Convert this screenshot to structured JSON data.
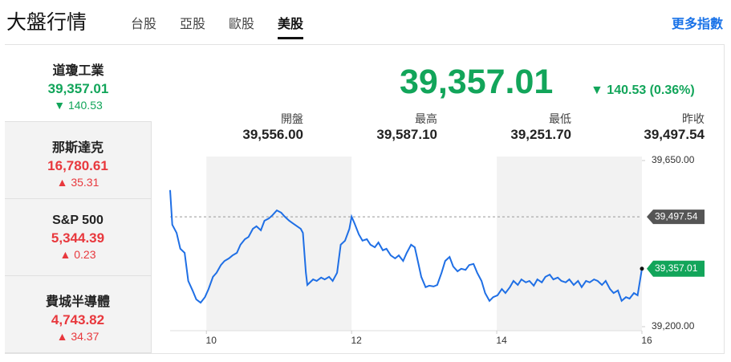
{
  "header": {
    "title": "大盤行情",
    "tabs": [
      "台股",
      "亞股",
      "歐股",
      "美股"
    ],
    "active_tab": 3,
    "link": "更多指數"
  },
  "indices": [
    {
      "name": "道瓊工業",
      "price": "39,357.01",
      "change": "140.53",
      "direction": "down"
    },
    {
      "name": "那斯達克",
      "price": "16,780.61",
      "change": "35.31",
      "direction": "up"
    },
    {
      "name": "S&P 500",
      "price": "5,344.39",
      "change": "0.23",
      "direction": "up"
    },
    {
      "name": "費城半導體",
      "price": "4,743.82",
      "change": "34.37",
      "direction": "up"
    }
  ],
  "active_index": 0,
  "quote": {
    "price": "39,357.01",
    "change": "140.53 (0.36%)",
    "direction": "down",
    "stats": [
      {
        "label": "開盤",
        "value": "39,556.00"
      },
      {
        "label": "最高",
        "value": "39,587.10"
      },
      {
        "label": "最低",
        "value": "39,251.70"
      },
      {
        "label": "昨收",
        "value": "39,497.54"
      }
    ]
  },
  "chart_data": {
    "type": "line",
    "color": "#1f6fe5",
    "x": [
      9.5,
      9.53,
      9.59,
      9.64,
      9.7,
      9.75,
      9.81,
      9.86,
      9.92,
      9.98,
      10.03,
      10.09,
      10.14,
      10.2,
      10.25,
      10.31,
      10.36,
      10.42,
      10.47,
      10.53,
      10.58,
      10.64,
      10.69,
      10.75,
      10.8,
      10.86,
      10.91,
      10.97,
      11.03,
      11.08,
      11.14,
      11.19,
      11.25,
      11.3,
      11.33,
      11.37,
      11.39,
      11.47,
      11.52,
      11.58,
      11.63,
      11.69,
      11.74,
      11.8,
      11.85,
      11.91,
      11.97,
      12.0,
      12.04,
      12.1,
      12.15,
      12.21,
      12.26,
      12.32,
      12.37,
      12.43,
      12.48,
      12.54,
      12.6,
      12.65,
      12.71,
      12.76,
      12.82,
      12.87,
      12.9,
      12.96,
      13.02,
      13.07,
      13.13,
      13.18,
      13.24,
      13.29,
      13.35,
      13.4,
      13.46,
      13.51,
      13.57,
      13.62,
      13.68,
      13.73,
      13.79,
      13.84,
      13.9,
      13.95,
      14.01,
      14.07,
      14.12,
      14.18,
      14.23,
      14.29,
      14.34,
      14.4,
      14.45,
      14.51,
      14.56,
      14.62,
      14.67,
      14.73,
      14.78,
      14.84,
      14.89,
      14.95,
      15.0,
      15.06,
      15.12,
      15.17,
      15.23,
      15.28,
      15.34,
      15.39,
      15.45,
      15.5,
      15.56,
      15.61,
      15.67,
      15.72,
      15.78,
      15.83,
      15.89,
      15.94,
      16.0
    ],
    "values": [
      39570,
      39476,
      39454,
      39411,
      39400,
      39324,
      39298,
      39274,
      39265,
      39280,
      39302,
      39335,
      39346,
      39367,
      39378,
      39385,
      39393,
      39400,
      39422,
      39437,
      39443,
      39465,
      39472,
      39461,
      39487,
      39493,
      39502,
      39515,
      39509,
      39498,
      39487,
      39480,
      39472,
      39465,
      39454,
      39346,
      39313,
      39328,
      39324,
      39333,
      39328,
      39335,
      39324,
      39346,
      39422,
      39433,
      39465,
      39498,
      39480,
      39450,
      39433,
      39437,
      39422,
      39415,
      39428,
      39407,
      39411,
      39393,
      39385,
      39393,
      39378,
      39400,
      39422,
      39415,
      39389,
      39335,
      39307,
      39311,
      39309,
      39313,
      39346,
      39378,
      39389,
      39363,
      39350,
      39357,
      39354,
      39367,
      39370,
      39346,
      39324,
      39291,
      39270,
      39280,
      39285,
      39302,
      39291,
      39307,
      39324,
      39313,
      39328,
      39320,
      39324,
      39311,
      39328,
      39320,
      39335,
      39341,
      39328,
      39333,
      39324,
      39320,
      39328,
      39313,
      39324,
      39307,
      39324,
      39320,
      39328,
      39324,
      39313,
      39324,
      39302,
      39291,
      39298,
      39270,
      39280,
      39276,
      39291,
      39285,
      39357.01
    ],
    "xlim": [
      9.5,
      16
    ],
    "xticks": [
      10,
      12,
      14,
      16
    ],
    "ylim": [
      39200,
      39650
    ],
    "yticks": [
      {
        "value": 39200,
        "label": "39,200.00"
      },
      {
        "value": 39650,
        "label": "39,650.00"
      }
    ],
    "reference": {
      "value": 39497.54,
      "label": "39,497.54"
    },
    "last": {
      "value": 39357.01,
      "label": "39,357.01"
    }
  }
}
